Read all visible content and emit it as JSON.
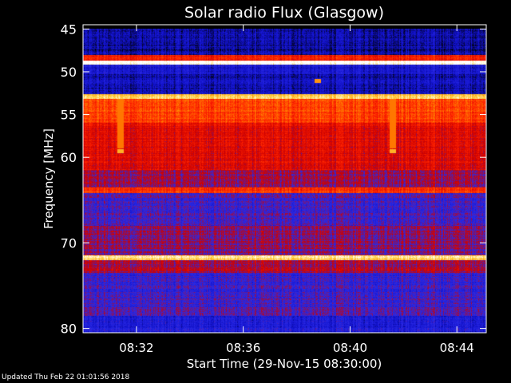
{
  "page": {
    "footer_text": "Updated Thu Feb 22 01:01:56 2018"
  },
  "chart_data": {
    "type": "heatmap",
    "title": "Solar radio Flux (Glasgow)",
    "xlabel": "Start Time (29-Nov-15 08:30:00)",
    "ylabel": "Frequency [MHz]",
    "xlim_minutes": [
      0,
      15.1
    ],
    "ylim_mhz": [
      44.5,
      80.5
    ],
    "y_scale": "linear-inverted",
    "x_ticks": [
      {
        "minute": 2,
        "label": "08:32"
      },
      {
        "minute": 6,
        "label": "08:36"
      },
      {
        "minute": 10,
        "label": "08:40"
      },
      {
        "minute": 14,
        "label": "08:44"
      }
    ],
    "y_ticks": [
      {
        "mhz": 45,
        "label": "45"
      },
      {
        "mhz": 50,
        "label": "50"
      },
      {
        "mhz": 55,
        "label": "55"
      },
      {
        "mhz": 60,
        "label": "60"
      },
      {
        "mhz": 70,
        "label": "70"
      },
      {
        "mhz": 80,
        "label": "80"
      }
    ],
    "colormap": [
      "#000000",
      "#1010c8",
      "#2a2ae6",
      "#cc0000",
      "#ff2200",
      "#ff8000",
      "#ffd040",
      "#ffffff"
    ],
    "frequency_bands": [
      {
        "from_mhz": 44.5,
        "to_mhz": 45.0,
        "level": 0.0
      },
      {
        "from_mhz": 45.0,
        "to_mhz": 48.0,
        "level": 0.12
      },
      {
        "from_mhz": 48.0,
        "to_mhz": 48.7,
        "level": 0.55
      },
      {
        "from_mhz": 48.7,
        "to_mhz": 49.2,
        "level": 1.0
      },
      {
        "from_mhz": 49.2,
        "to_mhz": 50.2,
        "level": 0.2
      },
      {
        "from_mhz": 50.2,
        "to_mhz": 52.6,
        "level": 0.14
      },
      {
        "from_mhz": 52.6,
        "to_mhz": 53.2,
        "level": 0.85
      },
      {
        "from_mhz": 53.2,
        "to_mhz": 56.0,
        "level": 0.62
      },
      {
        "from_mhz": 56.0,
        "to_mhz": 61.5,
        "level": 0.48
      },
      {
        "from_mhz": 61.5,
        "to_mhz": 63.5,
        "level": 0.38
      },
      {
        "from_mhz": 63.5,
        "to_mhz": 64.2,
        "level": 0.6
      },
      {
        "from_mhz": 64.2,
        "to_mhz": 68.0,
        "level": 0.3
      },
      {
        "from_mhz": 68.0,
        "to_mhz": 71.5,
        "level": 0.36
      },
      {
        "from_mhz": 71.5,
        "to_mhz": 72.0,
        "level": 0.9
      },
      {
        "from_mhz": 72.0,
        "to_mhz": 73.5,
        "level": 0.4
      },
      {
        "from_mhz": 73.5,
        "to_mhz": 76.0,
        "level": 0.28
      },
      {
        "from_mhz": 76.0,
        "to_mhz": 78.5,
        "level": 0.3
      },
      {
        "from_mhz": 78.5,
        "to_mhz": 80.5,
        "level": 0.22
      }
    ],
    "time_features": [
      {
        "minute": 1.4,
        "from_mhz": 52.6,
        "to_mhz": 59.0,
        "level": 0.7
      },
      {
        "minute": 11.6,
        "from_mhz": 52.6,
        "to_mhz": 59.0,
        "level": 0.7
      }
    ],
    "point_features": [
      {
        "minute": 1.4,
        "mhz": 59.3,
        "level": 0.8
      },
      {
        "minute": 11.6,
        "mhz": 59.3,
        "level": 0.8
      },
      {
        "minute": 8.8,
        "mhz": 51.1,
        "level": 0.75
      }
    ],
    "grid": false,
    "legend": "none"
  }
}
